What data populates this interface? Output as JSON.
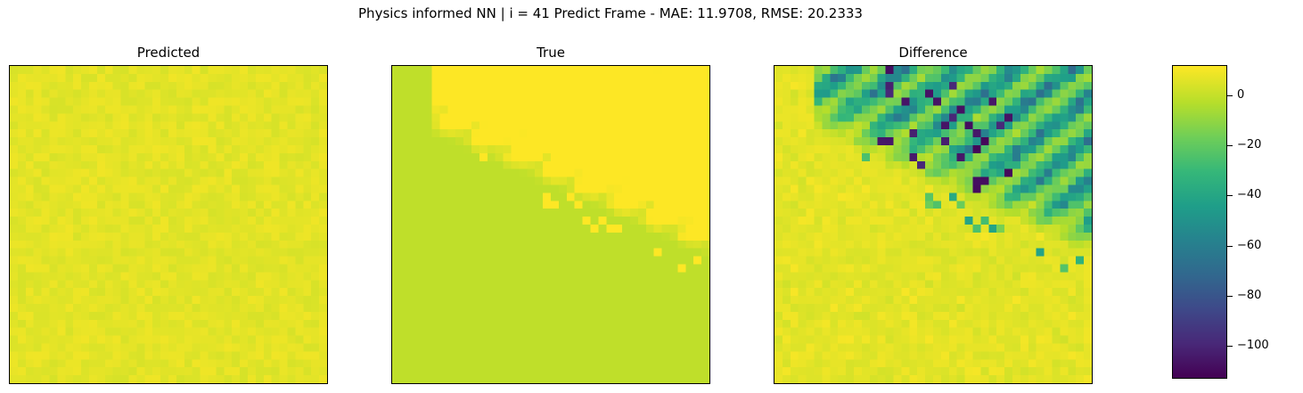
{
  "chart_data": {
    "type": "heatmap",
    "title": "Physics informed NN | i = 41 Predict Frame - MAE: 11.9708, RMSE: 20.2333",
    "panels": [
      {
        "title": "Predicted",
        "key": "predicted"
      },
      {
        "title": "True",
        "key": "true"
      },
      {
        "title": "Difference",
        "key": "difference"
      }
    ],
    "grid_size": [
      40,
      40
    ],
    "axis_ticks": "none",
    "colormap": "viridis",
    "colorbar": {
      "range": [
        -113,
        12
      ],
      "ticks": [
        0,
        -20,
        -40,
        -60,
        -80,
        -100
      ],
      "tick_labels": [
        "0",
        "−20",
        "−40",
        "−60",
        "−80",
        "−100"
      ]
    },
    "colors": [
      "#440154",
      "#482878",
      "#3e4989",
      "#31688e",
      "#26828e",
      "#1f9e89",
      "#35b779",
      "#6ece58",
      "#b5de2b",
      "#fde725"
    ],
    "value_summary": {
      "predicted_typical": 7,
      "true_background": 0,
      "true_max": 75,
      "difference_typical": -5,
      "difference_min": -113
    }
  }
}
